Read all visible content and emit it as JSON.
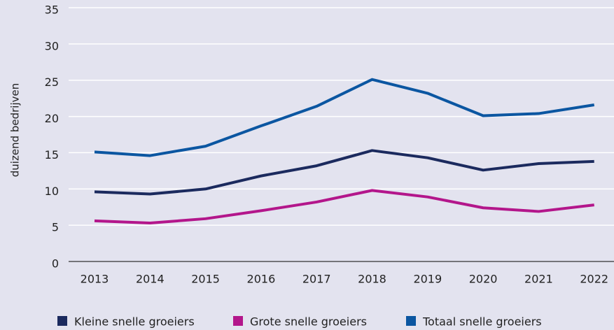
{
  "chart_data": {
    "type": "line",
    "y_label": "duizend bedrijven",
    "categories": [
      "2013",
      "2014",
      "2015",
      "2016",
      "2017",
      "2018",
      "2019",
      "2020",
      "2021",
      "2022"
    ],
    "series": [
      {
        "name": "Kleine snelle groeiers",
        "color": "#1b2a5e",
        "values": [
          9.6,
          9.3,
          10.0,
          11.8,
          13.2,
          15.3,
          14.3,
          12.6,
          13.5,
          13.8
        ]
      },
      {
        "name": "Grote snelle groeiers",
        "color": "#b3168b",
        "values": [
          5.6,
          5.3,
          5.9,
          7.0,
          8.2,
          9.8,
          8.9,
          7.4,
          6.9,
          7.8
        ]
      },
      {
        "name": "Totaal snelle groeiers",
        "color": "#0b56a1",
        "values": [
          15.1,
          14.6,
          15.9,
          18.7,
          21.4,
          25.1,
          23.2,
          20.1,
          20.4,
          21.6
        ]
      }
    ],
    "ylim": [
      0,
      35
    ],
    "yticks": [
      0,
      5,
      10,
      15,
      20,
      25,
      30,
      35
    ],
    "grid": true
  }
}
